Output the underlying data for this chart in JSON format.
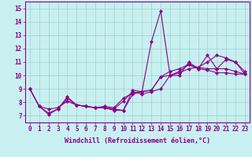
{
  "series": [
    {
      "x": [
        0,
        1,
        2,
        3,
        4,
        5,
        6,
        7,
        8,
        9,
        10,
        11,
        12,
        13,
        14,
        15,
        16,
        17,
        18,
        19,
        20,
        21,
        22,
        23
      ],
      "y": [
        9.0,
        7.7,
        7.1,
        7.5,
        8.4,
        7.8,
        7.7,
        7.6,
        7.6,
        7.4,
        7.4,
        8.6,
        8.8,
        12.5,
        14.8,
        10.0,
        10.0,
        11.0,
        10.5,
        11.5,
        10.5,
        11.2,
        11.0,
        10.1
      ]
    },
    {
      "x": [
        0,
        1,
        2,
        3,
        4,
        5,
        6,
        7,
        8,
        9,
        10,
        11,
        12,
        13,
        14,
        15,
        16,
        17,
        18,
        19,
        20,
        21,
        22,
        23
      ],
      "y": [
        9.0,
        7.7,
        7.5,
        7.6,
        8.1,
        7.8,
        7.7,
        7.6,
        7.7,
        7.6,
        8.3,
        8.7,
        8.8,
        8.9,
        9.9,
        10.3,
        10.5,
        10.8,
        10.5,
        10.4,
        10.2,
        10.2,
        10.1,
        10.1
      ]
    },
    {
      "x": [
        3,
        4,
        5,
        6,
        7,
        8,
        9,
        10,
        11,
        12,
        13,
        14,
        15,
        16,
        17,
        18,
        19,
        20,
        21,
        22,
        23
      ],
      "y": [
        7.6,
        8.1,
        7.8,
        7.7,
        7.6,
        7.6,
        7.5,
        8.1,
        8.8,
        8.6,
        8.8,
        9.0,
        10.0,
        10.3,
        10.8,
        10.6,
        11.0,
        11.5,
        11.3,
        11.0,
        10.3
      ]
    },
    {
      "x": [
        0,
        1,
        2,
        3,
        4,
        5,
        6,
        7,
        8,
        9,
        10,
        11,
        12,
        13,
        14,
        15,
        16,
        17,
        18,
        19,
        20,
        21,
        22,
        23
      ],
      "y": [
        9.0,
        7.7,
        7.2,
        7.5,
        8.3,
        7.8,
        7.7,
        7.6,
        7.6,
        7.5,
        7.4,
        8.9,
        8.8,
        8.9,
        9.9,
        10.0,
        10.2,
        10.5,
        10.6,
        10.5,
        10.5,
        10.5,
        10.3,
        10.1
      ]
    }
  ],
  "line_color": "#880088",
  "marker": "D",
  "marker_size": 2.2,
  "bg_color": "#c8f0f0",
  "grid_color": "#a0d0d0",
  "xlabel": "Windchill (Refroidissement éolien,°C)",
  "xlabel_fontsize": 6,
  "xlim": [
    -0.5,
    23.5
  ],
  "ylim": [
    6.5,
    15.5
  ],
  "yticks": [
    7,
    8,
    9,
    10,
    11,
    12,
    13,
    14,
    15
  ],
  "xticks": [
    0,
    1,
    2,
    3,
    4,
    5,
    6,
    7,
    8,
    9,
    10,
    11,
    12,
    13,
    14,
    15,
    16,
    17,
    18,
    19,
    20,
    21,
    22,
    23
  ],
  "tick_fontsize": 5.5,
  "linewidth": 0.8,
  "figsize": [
    3.2,
    2.0
  ],
  "dpi": 100
}
